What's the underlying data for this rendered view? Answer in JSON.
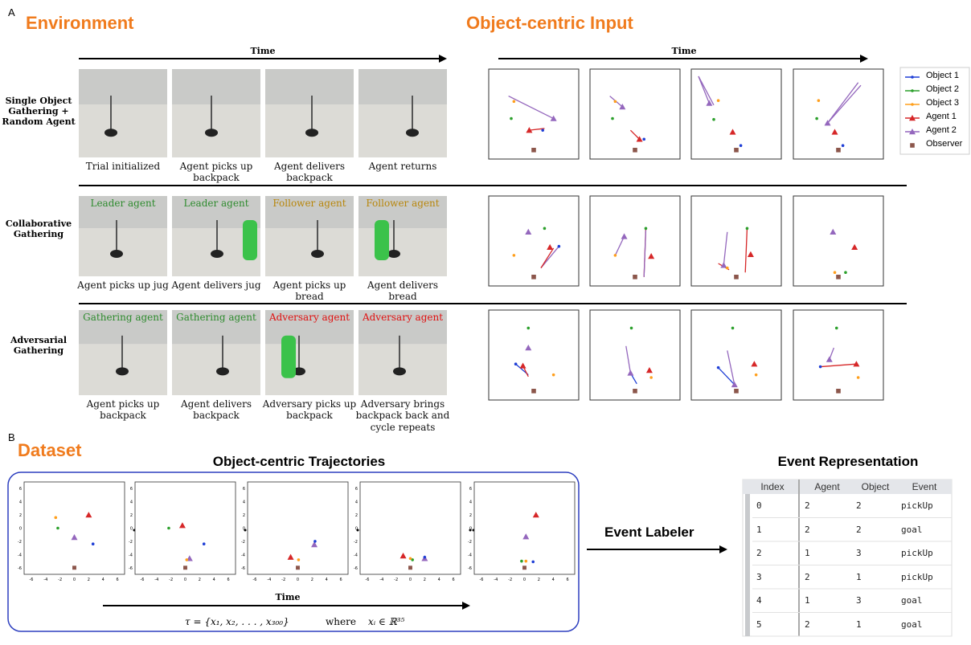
{
  "figure": {
    "label_a": "A",
    "environment": {
      "title": "Environment",
      "time": "Time",
      "rows": [
        {
          "label": "Single Object Gathering + Random Agent",
          "frames": [
            {
              "caption": "Trial initialized"
            },
            {
              "caption": "Agent picks up backpack"
            },
            {
              "caption": "Agent delivers backpack"
            },
            {
              "caption": "Agent returns"
            }
          ]
        },
        {
          "label": "Collaborative Gathering",
          "frames": [
            {
              "overlay": "Leader agent",
              "caption": "Agent picks up jug"
            },
            {
              "overlay": "Leader agent",
              "caption": "Agent delivers jug"
            },
            {
              "overlay": "Follower agent",
              "caption": "Agent picks up bread"
            },
            {
              "overlay": "Follower agent",
              "caption": "Agent delivers bread"
            }
          ]
        },
        {
          "label": "Adversarial Gathering",
          "frames": [
            {
              "overlay": "Gathering agent",
              "caption": "Agent picks up backpack"
            },
            {
              "overlay": "Gathering agent",
              "caption": "Agent delivers backpack"
            },
            {
              "overlay": "Adversary agent",
              "caption": "Adversary picks up backpack"
            },
            {
              "overlay": "Adversary agent",
              "caption": "Adversary brings backpack back and cycle repeats"
            }
          ]
        }
      ]
    },
    "object_input": {
      "title": "Object-centric Input",
      "time": "Time",
      "legend": [
        "Object 1",
        "Object 2",
        "Object 3",
        "Agent 1",
        "Agent 2",
        "Observer"
      ]
    },
    "label_b": "B",
    "dataset": {
      "title": "Dataset",
      "trajectories": {
        "title": "Object-centric Trajectories",
        "time": "Time",
        "yticks": [
          "6",
          "4",
          "2",
          "0",
          "-2",
          "-4",
          "-6"
        ],
        "xticks": [
          "-6",
          "-4",
          "-2",
          "0",
          "2",
          "4",
          "6"
        ],
        "formula_set": "τ = {x₁, x₂, . . . , x₃₀₀}",
        "formula_where": "where",
        "formula_domain": "xᵢ ∈ ℝ³⁵"
      },
      "event_labeler": "Event Labeler",
      "event_table": {
        "title": "Event Representation",
        "columns": [
          "Index",
          "Agent",
          "Object",
          "Event"
        ],
        "rows": [
          [
            0,
            2,
            2,
            "pickUp"
          ],
          [
            1,
            2,
            2,
            "goal"
          ],
          [
            2,
            1,
            3,
            "pickUp"
          ],
          [
            3,
            2,
            1,
            "pickUp"
          ],
          [
            4,
            1,
            3,
            "goal"
          ],
          [
            5,
            2,
            1,
            "goal"
          ]
        ]
      }
    }
  }
}
